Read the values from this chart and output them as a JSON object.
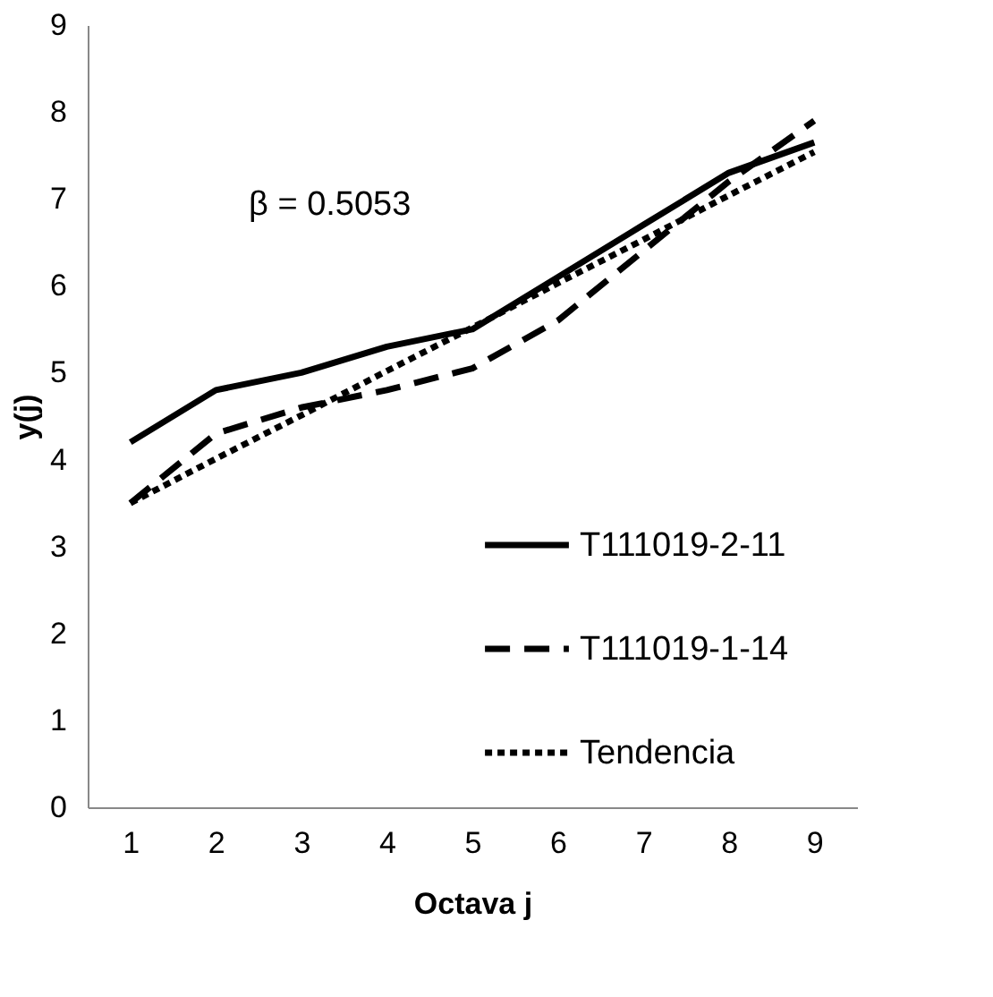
{
  "chart_data": {
    "type": "line",
    "xlabel": "Octava j",
    "ylabel": "y(j)",
    "x": [
      1,
      2,
      3,
      4,
      5,
      6,
      7,
      8,
      9
    ],
    "series": [
      {
        "name": "T111019-2-11",
        "color": "#000000",
        "line_style": "solid",
        "values": [
          4.2,
          4.8,
          5.0,
          5.3,
          5.5,
          6.1,
          6.7,
          7.3,
          7.65
        ]
      },
      {
        "name": "T111019-1-14",
        "color": "#000000",
        "line_style": "dashed",
        "values": [
          3.5,
          4.3,
          4.6,
          4.8,
          5.05,
          5.6,
          6.4,
          7.2,
          7.9
        ]
      },
      {
        "name": "Tendencia",
        "color": "#000000",
        "line_style": "dotted",
        "values": [
          3.5,
          4.01,
          4.51,
          5.02,
          5.52,
          6.03,
          6.53,
          7.04,
          7.54
        ]
      }
    ],
    "xlim": [
      0.5,
      9.5
    ],
    "xticks": [
      1,
      2,
      3,
      4,
      5,
      6,
      7,
      8,
      9
    ],
    "ylim": [
      0,
      9
    ],
    "yticks": [
      0,
      1,
      2,
      3,
      4,
      5,
      6,
      7,
      8,
      9
    ],
    "annotations": [
      "β = 0.5053"
    ],
    "grid": false,
    "legend": "right",
    "marker": "none"
  }
}
